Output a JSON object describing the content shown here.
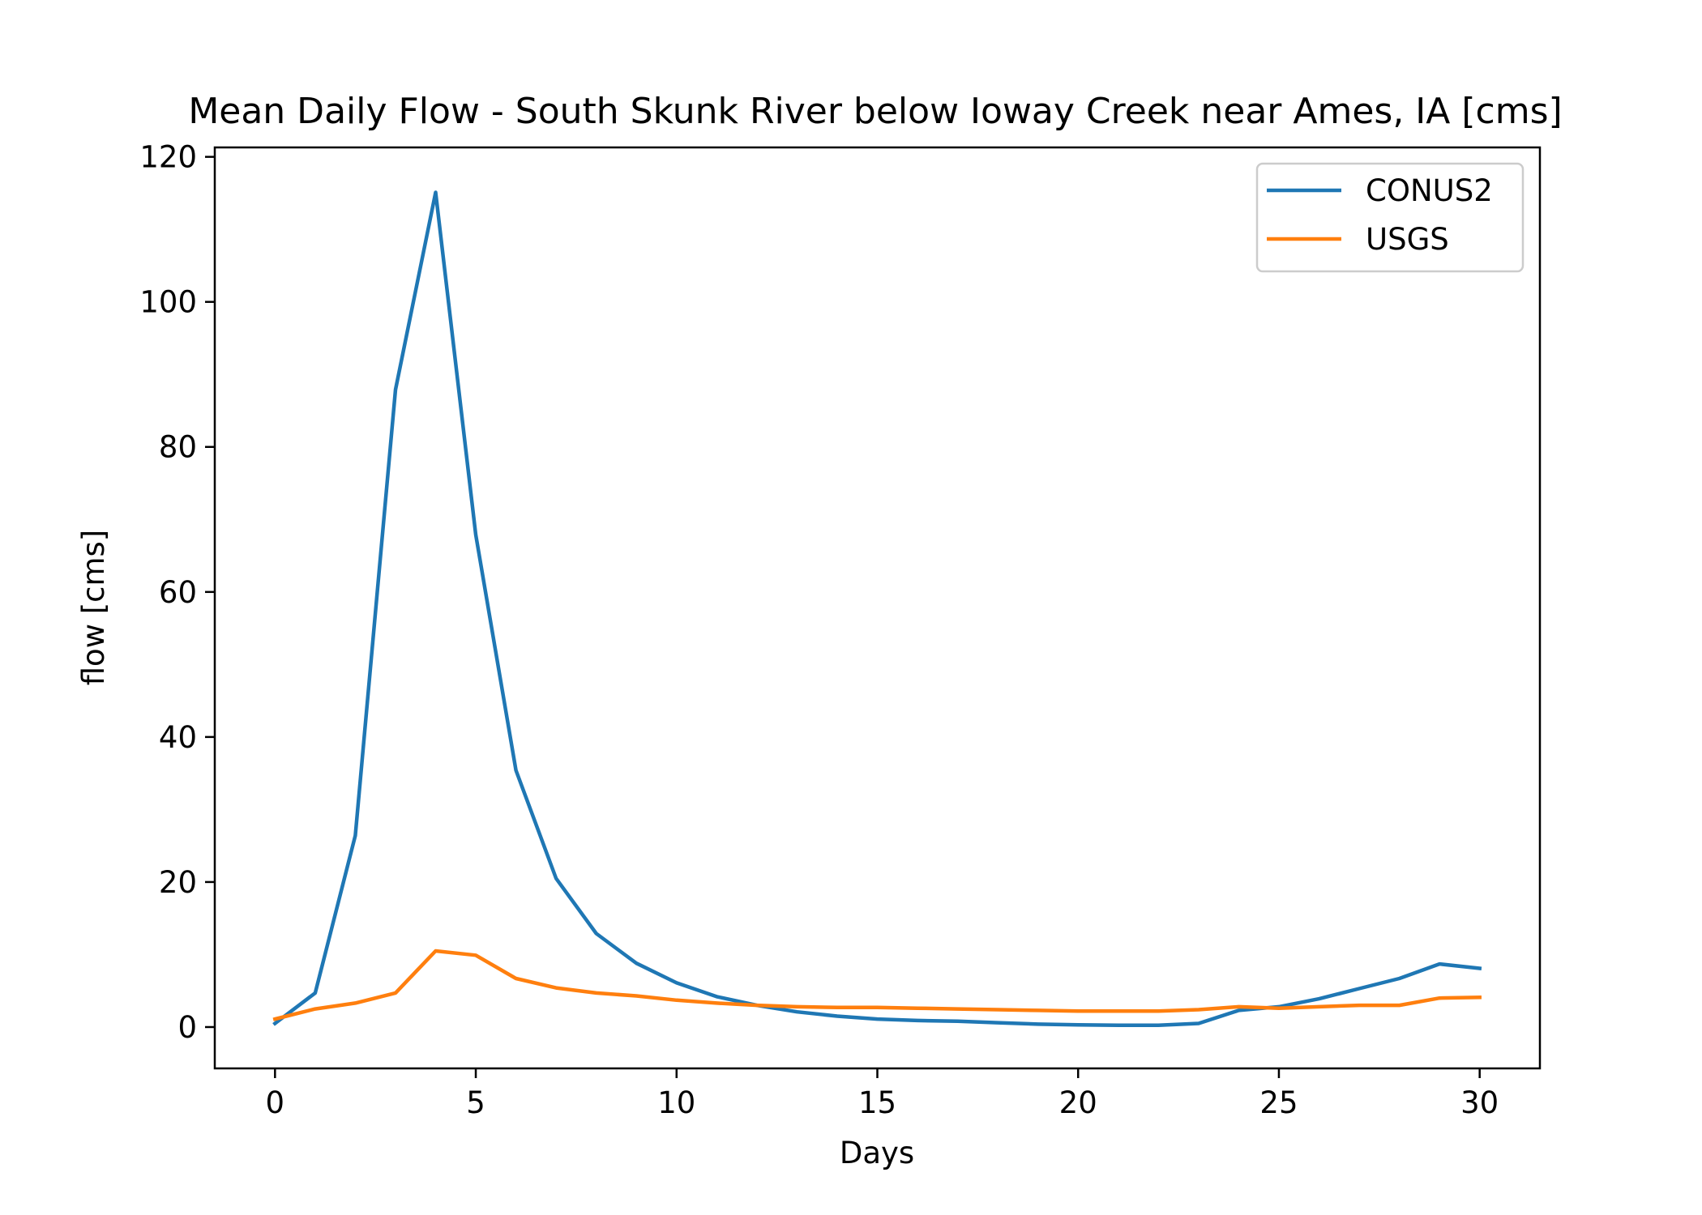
{
  "chart_data": {
    "type": "line",
    "title": "Mean Daily Flow - South Skunk River below Ioway Creek near Ames, IA [cms]",
    "xlabel": "Days",
    "ylabel": "flow [cms]",
    "xlim": [
      -1.5,
      31.5
    ],
    "ylim": [
      -5.7,
      121.3
    ],
    "xticks": [
      0,
      5,
      10,
      15,
      20,
      25,
      30
    ],
    "yticks": [
      0,
      20,
      40,
      60,
      80,
      100,
      120
    ],
    "grid": false,
    "legend_position": "top-right",
    "x": [
      0,
      1,
      2,
      3,
      4,
      5,
      6,
      7,
      8,
      9,
      10,
      11,
      12,
      13,
      14,
      15,
      16,
      17,
      18,
      19,
      20,
      21,
      22,
      23,
      24,
      25,
      26,
      27,
      28,
      29,
      30
    ],
    "series": [
      {
        "name": "CONUS2",
        "color": "#1f77b4",
        "values": [
          0.5,
          4.7,
          26.4,
          87.9,
          115.1,
          67.9,
          35.4,
          20.5,
          12.9,
          8.8,
          6.1,
          4.2,
          3.0,
          2.1,
          1.5,
          1.1,
          0.9,
          0.8,
          0.6,
          0.4,
          0.3,
          0.25,
          0.25,
          0.5,
          2.3,
          2.8,
          3.9,
          5.3,
          6.7,
          8.7,
          8.1
        ]
      },
      {
        "name": "USGS",
        "color": "#ff7f0e",
        "values": [
          1.1,
          2.5,
          3.3,
          4.7,
          10.5,
          9.9,
          6.7,
          5.4,
          4.7,
          4.3,
          3.7,
          3.3,
          3.0,
          2.8,
          2.7,
          2.7,
          2.6,
          2.5,
          2.4,
          2.3,
          2.2,
          2.2,
          2.2,
          2.4,
          2.8,
          2.6,
          2.8,
          3.0,
          3.0,
          4.0,
          4.1
        ]
      }
    ]
  }
}
